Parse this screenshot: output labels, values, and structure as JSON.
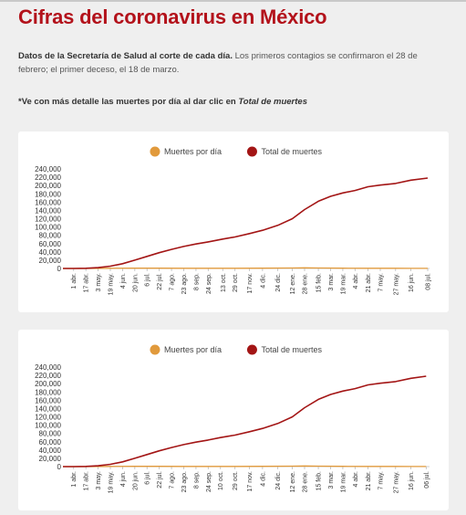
{
  "page": {
    "title": "Cifras del coronavirus en México",
    "desc_bold": "Datos de la Secretaría de Salud al corte de cada día.",
    "desc_rest": " Los primeros contagios se confirmaron el 28 de febrero; el primer deceso, el 18 de marzo.",
    "note_prefix": "*Ve con más detalle las muertes por día al dar clic en ",
    "note_link": "Total de muertes"
  },
  "colors": {
    "title": "#b3121b",
    "daily": "#e19a3c",
    "total": "#a31515",
    "background": "#efefef",
    "card": "#ffffff"
  },
  "chart_data": [
    {
      "type": "line",
      "title": "",
      "legend_position": "top-center",
      "grid": false,
      "ylim": [
        0,
        240000
      ],
      "yticks": [
        0,
        20000,
        40000,
        60000,
        80000,
        100000,
        120000,
        140000,
        160000,
        180000,
        200000,
        220000,
        240000
      ],
      "ytick_labels": [
        "0",
        "20,000",
        "40,000",
        "60,000",
        "80,000",
        "100,000",
        "120,000",
        "140,000",
        "160,000",
        "180,000",
        "200,000",
        "220,000",
        "240,000"
      ],
      "xlim": [
        "2020-03-18",
        "2021-07-08"
      ],
      "xticks": [
        {
          "label": "1 abr.",
          "date": "2020-04-01"
        },
        {
          "label": "17 abr.",
          "date": "2020-04-17"
        },
        {
          "label": "3 may.",
          "date": "2020-05-03"
        },
        {
          "label": "19 may.",
          "date": "2020-05-19"
        },
        {
          "label": "4 jun.",
          "date": "2020-06-04"
        },
        {
          "label": "20 jun.",
          "date": "2020-06-20"
        },
        {
          "label": "6 jul.",
          "date": "2020-07-06"
        },
        {
          "label": "22 jul.",
          "date": "2020-07-22"
        },
        {
          "label": "7 ago.",
          "date": "2020-08-07"
        },
        {
          "label": "23 ago.",
          "date": "2020-08-23"
        },
        {
          "label": "8 sep.",
          "date": "2020-09-08"
        },
        {
          "label": "24 sep.",
          "date": "2020-09-24"
        },
        {
          "label": "13 oct.",
          "date": "2020-10-13"
        },
        {
          "label": "29 oct.",
          "date": "2020-10-29"
        },
        {
          "label": "17 nov.",
          "date": "2020-11-17"
        },
        {
          "label": "4 dic.",
          "date": "2020-12-04"
        },
        {
          "label": "24 dic.",
          "date": "2020-12-24"
        },
        {
          "label": "12 ene.",
          "date": "2021-01-12"
        },
        {
          "label": "28 ene.",
          "date": "2021-01-28"
        },
        {
          "label": "15 feb.",
          "date": "2021-02-15"
        },
        {
          "label": "3 mar.",
          "date": "2021-03-03"
        },
        {
          "label": "19 mar.",
          "date": "2021-03-19"
        },
        {
          "label": "4 abr.",
          "date": "2021-04-04"
        },
        {
          "label": "21 abr.",
          "date": "2021-04-21"
        },
        {
          "label": "7 may.",
          "date": "2021-05-07"
        },
        {
          "label": "27 may.",
          "date": "2021-05-27"
        },
        {
          "label": "16 jun.",
          "date": "2021-06-16"
        },
        {
          "label": "08 jul.",
          "date": "2021-07-08"
        }
      ],
      "series": [
        {
          "name": "Muertes por día",
          "color": "#e19a3c",
          "points": [
            [
              "2020-03-18",
              1
            ],
            [
              "2020-04-17",
              100
            ],
            [
              "2020-05-19",
              400
            ],
            [
              "2020-06-20",
              650
            ],
            [
              "2020-07-22",
              700
            ],
            [
              "2020-08-23",
              550
            ],
            [
              "2020-09-24",
              450
            ],
            [
              "2020-10-29",
              450
            ],
            [
              "2020-12-04",
              650
            ],
            [
              "2021-01-12",
              1100
            ],
            [
              "2021-01-28",
              1500
            ],
            [
              "2021-02-15",
              1200
            ],
            [
              "2021-03-19",
              700
            ],
            [
              "2021-04-21",
              450
            ],
            [
              "2021-05-27",
              350
            ],
            [
              "2021-06-16",
              250
            ],
            [
              "2021-07-08",
              200
            ]
          ]
        },
        {
          "name": "Total de muertes",
          "color": "#a31515",
          "points": [
            [
              "2020-03-18",
              1
            ],
            [
              "2020-04-01",
              30
            ],
            [
              "2020-04-17",
              500
            ],
            [
              "2020-05-03",
              2000
            ],
            [
              "2020-05-19",
              5500
            ],
            [
              "2020-06-04",
              11500
            ],
            [
              "2020-06-20",
              20000
            ],
            [
              "2020-07-06",
              29000
            ],
            [
              "2020-07-22",
              38000
            ],
            [
              "2020-08-07",
              46000
            ],
            [
              "2020-08-23",
              53000
            ],
            [
              "2020-09-08",
              59000
            ],
            [
              "2020-09-24",
              64000
            ],
            [
              "2020-10-13",
              71000
            ],
            [
              "2020-10-29",
              76000
            ],
            [
              "2020-11-17",
              84000
            ],
            [
              "2020-12-04",
              92000
            ],
            [
              "2020-12-24",
              104000
            ],
            [
              "2021-01-12",
              120000
            ],
            [
              "2021-01-28",
              142000
            ],
            [
              "2021-02-15",
              162000
            ],
            [
              "2021-03-03",
              174000
            ],
            [
              "2021-03-19",
              182000
            ],
            [
              "2021-04-04",
              188000
            ],
            [
              "2021-04-21",
              197000
            ],
            [
              "2021-05-07",
              201000
            ],
            [
              "2021-05-27",
              205000
            ],
            [
              "2021-06-16",
              213000
            ],
            [
              "2021-07-08",
              218000
            ]
          ]
        }
      ]
    },
    {
      "type": "line",
      "title": "",
      "legend_position": "top-center",
      "grid": false,
      "ylim": [
        0,
        240000
      ],
      "yticks": [
        0,
        20000,
        40000,
        60000,
        80000,
        100000,
        120000,
        140000,
        160000,
        180000,
        200000,
        220000,
        240000
      ],
      "ytick_labels": [
        "0",
        "20,000",
        "40,000",
        "60,000",
        "80,000",
        "100,000",
        "120,000",
        "140,000",
        "160,000",
        "180,000",
        "200,000",
        "220,000",
        "240,000"
      ],
      "xlim": [
        "2020-03-18",
        "2021-07-08"
      ],
      "xticks": [
        {
          "label": "1 abr.",
          "date": "2020-04-01"
        },
        {
          "label": "17 abr.",
          "date": "2020-04-17"
        },
        {
          "label": "3 may.",
          "date": "2020-05-03"
        },
        {
          "label": "19 may.",
          "date": "2020-05-19"
        },
        {
          "label": "4 jun.",
          "date": "2020-06-04"
        },
        {
          "label": "20 jun.",
          "date": "2020-06-20"
        },
        {
          "label": "6 jul.",
          "date": "2020-07-06"
        },
        {
          "label": "22 jul.",
          "date": "2020-07-22"
        },
        {
          "label": "7 ago.",
          "date": "2020-08-07"
        },
        {
          "label": "23 ago.",
          "date": "2020-08-23"
        },
        {
          "label": "8 sep.",
          "date": "2020-09-08"
        },
        {
          "label": "24 sep.",
          "date": "2020-09-24"
        },
        {
          "label": "10 oct.",
          "date": "2020-10-10"
        },
        {
          "label": "29 oct.",
          "date": "2020-10-29"
        },
        {
          "label": "17 nov.",
          "date": "2020-11-17"
        },
        {
          "label": "4 dic.",
          "date": "2020-12-04"
        },
        {
          "label": "24 dic.",
          "date": "2020-12-24"
        },
        {
          "label": "12 ene.",
          "date": "2021-01-12"
        },
        {
          "label": "28 ene.",
          "date": "2021-01-28"
        },
        {
          "label": "15 feb.",
          "date": "2021-02-15"
        },
        {
          "label": "3 mar.",
          "date": "2021-03-03"
        },
        {
          "label": "19 mar.",
          "date": "2021-03-19"
        },
        {
          "label": "4 abr.",
          "date": "2021-04-04"
        },
        {
          "label": "21 abr.",
          "date": "2021-04-21"
        },
        {
          "label": "7 may.",
          "date": "2021-05-07"
        },
        {
          "label": "27 may.",
          "date": "2021-05-27"
        },
        {
          "label": "16 jun.",
          "date": "2021-06-16"
        },
        {
          "label": "06 jul.",
          "date": "2021-07-06"
        }
      ],
      "series": [
        {
          "name": "Muertes por día",
          "color": "#e19a3c",
          "points": [
            [
              "2020-03-18",
              1
            ],
            [
              "2020-04-17",
              100
            ],
            [
              "2020-05-19",
              400
            ],
            [
              "2020-06-20",
              650
            ],
            [
              "2020-07-22",
              700
            ],
            [
              "2020-08-23",
              550
            ],
            [
              "2020-09-24",
              450
            ],
            [
              "2020-10-29",
              450
            ],
            [
              "2020-12-04",
              650
            ],
            [
              "2021-01-12",
              1100
            ],
            [
              "2021-01-28",
              1500
            ],
            [
              "2021-02-15",
              1200
            ],
            [
              "2021-03-19",
              700
            ],
            [
              "2021-04-21",
              450
            ],
            [
              "2021-05-27",
              350
            ],
            [
              "2021-06-16",
              250
            ],
            [
              "2021-07-06",
              200
            ]
          ]
        },
        {
          "name": "Total de muertes",
          "color": "#a31515",
          "points": [
            [
              "2020-03-18",
              1
            ],
            [
              "2020-04-01",
              30
            ],
            [
              "2020-04-17",
              500
            ],
            [
              "2020-05-03",
              2000
            ],
            [
              "2020-05-19",
              5500
            ],
            [
              "2020-06-04",
              11500
            ],
            [
              "2020-06-20",
              20000
            ],
            [
              "2020-07-06",
              29000
            ],
            [
              "2020-07-22",
              38000
            ],
            [
              "2020-08-07",
              46000
            ],
            [
              "2020-08-23",
              53000
            ],
            [
              "2020-09-08",
              59000
            ],
            [
              "2020-09-24",
              64000
            ],
            [
              "2020-10-10",
              70000
            ],
            [
              "2020-10-29",
              76000
            ],
            [
              "2020-11-17",
              84000
            ],
            [
              "2020-12-04",
              92000
            ],
            [
              "2020-12-24",
              104000
            ],
            [
              "2021-01-12",
              120000
            ],
            [
              "2021-01-28",
              142000
            ],
            [
              "2021-02-15",
              162000
            ],
            [
              "2021-03-03",
              174000
            ],
            [
              "2021-03-19",
              182000
            ],
            [
              "2021-04-04",
              188000
            ],
            [
              "2021-04-21",
              197000
            ],
            [
              "2021-05-07",
              201000
            ],
            [
              "2021-05-27",
              205000
            ],
            [
              "2021-06-16",
              213000
            ],
            [
              "2021-07-06",
              218000
            ]
          ]
        }
      ]
    }
  ]
}
